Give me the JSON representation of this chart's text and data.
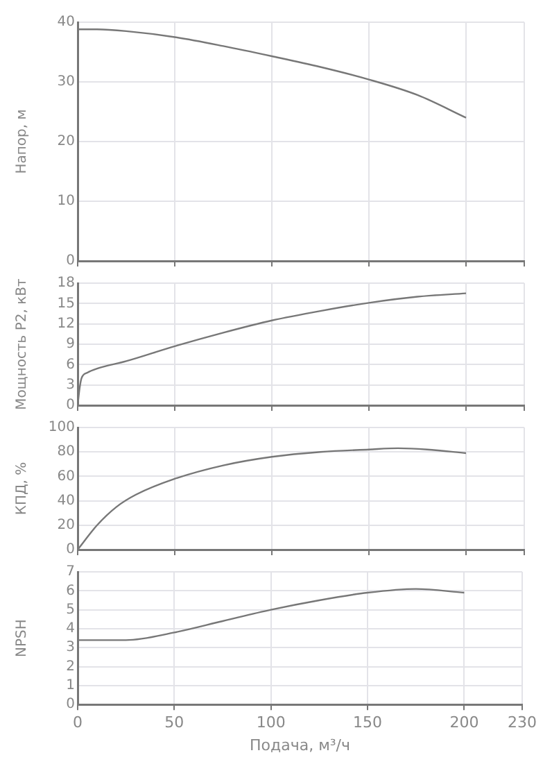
{
  "chart_data": [
    {
      "type": "line",
      "ylabel": "Напор, м",
      "xlim": [
        0,
        230
      ],
      "xticks": [
        0,
        50,
        100,
        150,
        200,
        230
      ],
      "ylim": [
        0,
        40
      ],
      "yticks": [
        0,
        10,
        20,
        30,
        40
      ],
      "grid": true,
      "marker": "none",
      "tick_labels": "y",
      "series": [
        {
          "color": "#777777",
          "x": [
            0,
            10,
            25,
            50,
            75,
            100,
            125,
            150,
            175,
            200
          ],
          "values": [
            38.8,
            38.8,
            38.5,
            37.5,
            36,
            34.3,
            32.5,
            30.4,
            27.8,
            24
          ]
        }
      ]
    },
    {
      "type": "line",
      "ylabel": "Мощность P2, кВт",
      "xlim": [
        0,
        230
      ],
      "xticks": [
        0,
        50,
        100,
        150,
        200,
        230
      ],
      "ylim": [
        0,
        18
      ],
      "yticks": [
        0,
        3,
        6,
        9,
        12,
        15,
        18
      ],
      "grid": true,
      "marker": "none",
      "tick_labels": "y",
      "series": [
        {
          "color": "#777777",
          "x": [
            0,
            1,
            2,
            5,
            10,
            25,
            50,
            75,
            100,
            125,
            150,
            175,
            200
          ],
          "values": [
            0,
            2.5,
            4,
            4.8,
            5.4,
            6.5,
            8.7,
            10.7,
            12.5,
            13.9,
            15.1,
            16,
            16.5
          ]
        }
      ]
    },
    {
      "type": "line",
      "ylabel": "КПД, %",
      "xlim": [
        0,
        230
      ],
      "xticks": [
        0,
        50,
        100,
        150,
        200,
        230
      ],
      "ylim": [
        0,
        100
      ],
      "yticks": [
        0,
        20,
        40,
        60,
        80,
        100
      ],
      "grid": true,
      "marker": "none",
      "tick_labels": "y",
      "series": [
        {
          "color": "#777777",
          "x": [
            0,
            10,
            20,
            30,
            50,
            75,
            100,
            125,
            150,
            165,
            180,
            200
          ],
          "values": [
            0,
            20,
            35,
            45,
            58,
            69,
            76,
            80,
            82,
            83,
            82,
            79
          ]
        }
      ]
    },
    {
      "type": "line",
      "ylabel": "NPSH",
      "xlabel": "Подача, м³/ч",
      "xlim": [
        0,
        230
      ],
      "xticks": [
        0,
        50,
        100,
        150,
        200,
        230
      ],
      "ylim": [
        0,
        7
      ],
      "yticks": [
        0,
        1,
        2,
        3,
        4,
        5,
        6,
        7
      ],
      "grid": true,
      "marker": "none",
      "series": [
        {
          "color": "#777777",
          "x": [
            0,
            25,
            50,
            75,
            100,
            125,
            150,
            175,
            200
          ],
          "values": [
            3.4,
            3.4,
            3.8,
            4.4,
            5,
            5.5,
            5.9,
            6.1,
            5.9
          ]
        }
      ]
    }
  ]
}
